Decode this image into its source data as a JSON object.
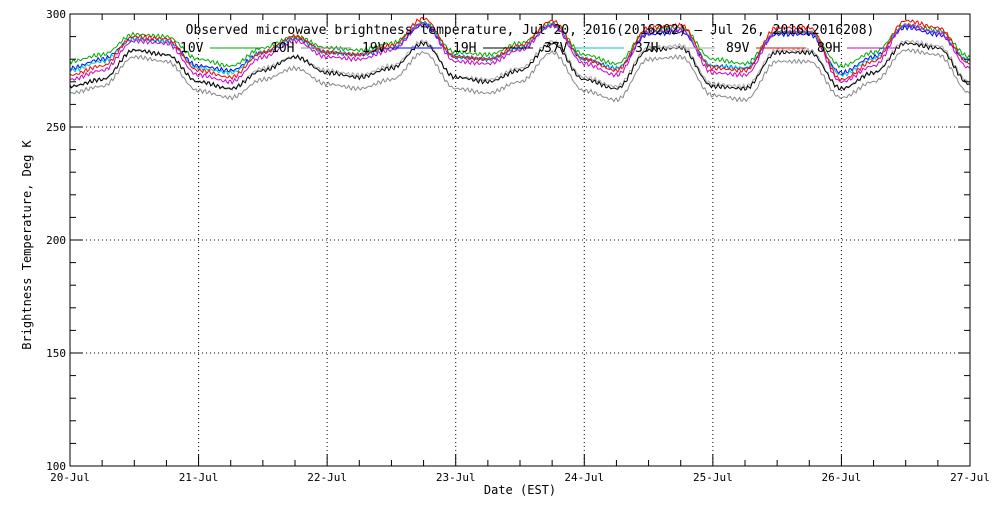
{
  "chart_data": {
    "type": "line",
    "title": "Observed microwave brightness temperature, Jul 20, 2016(2016202) – Jul 26, 2016(2016208)",
    "xlabel": "Date (EST)",
    "ylabel": "Brightness Temperature, Deg K",
    "xlim": [
      "2016-07-20",
      "2016-07-27"
    ],
    "ylim": [
      100,
      300
    ],
    "x_ticks": [
      "20-Jul",
      "21-Jul",
      "22-Jul",
      "23-Jul",
      "24-Jul",
      "25-Jul",
      "26-Jul",
      "27-Jul"
    ],
    "y_ticks": [
      100,
      150,
      200,
      250,
      300
    ],
    "grid": true,
    "legend": "top, single row",
    "x": [
      "2016-07-20 00:00",
      "2016-07-20 06:00",
      "2016-07-20 12:00",
      "2016-07-20 18:00",
      "2016-07-21 00:00",
      "2016-07-21 06:00",
      "2016-07-21 12:00",
      "2016-07-21 18:00",
      "2016-07-22 00:00",
      "2016-07-22 06:00",
      "2016-07-22 12:00",
      "2016-07-22 18:00",
      "2016-07-23 00:00",
      "2016-07-23 06:00",
      "2016-07-23 12:00",
      "2016-07-23 18:00",
      "2016-07-24 00:00",
      "2016-07-24 06:00",
      "2016-07-24 12:00",
      "2016-07-24 18:00",
      "2016-07-25 00:00",
      "2016-07-25 06:00",
      "2016-07-25 12:00",
      "2016-07-25 18:00",
      "2016-07-26 00:00",
      "2016-07-26 06:00",
      "2016-07-26 12:00",
      "2016-07-26 18:00",
      "2016-07-27 00:00"
    ],
    "series": [
      {
        "name": "10V",
        "color": "#00aa00",
        "values": [
          279,
          282,
          291,
          290,
          280,
          277,
          285,
          290,
          285,
          284,
          287,
          296,
          283,
          282,
          287,
          296,
          282,
          278,
          293,
          294,
          280,
          278,
          292,
          292,
          277,
          283,
          295,
          293,
          281
        ]
      },
      {
        "name": "10H",
        "color": "#888888",
        "values": [
          265,
          268,
          281,
          279,
          266,
          263,
          271,
          276,
          269,
          267,
          271,
          283,
          267,
          265,
          270,
          283,
          266,
          262,
          280,
          281,
          264,
          262,
          279,
          279,
          263,
          270,
          284,
          282,
          265
        ]
      },
      {
        "name": "19V",
        "color": "#0000ff",
        "values": [
          276,
          280,
          289,
          288,
          277,
          275,
          283,
          289,
          283,
          282,
          285,
          295,
          281,
          280,
          285,
          295,
          280,
          276,
          291,
          292,
          277,
          276,
          291,
          291,
          274,
          281,
          294,
          291,
          279
        ]
      },
      {
        "name": "19H",
        "color": "#000000",
        "values": [
          268,
          271,
          284,
          282,
          270,
          267,
          275,
          281,
          274,
          272,
          276,
          287,
          272,
          270,
          275,
          287,
          271,
          267,
          284,
          285,
          268,
          267,
          283,
          283,
          267,
          274,
          287,
          285,
          269
        ]
      },
      {
        "name": "37V",
        "color": "#00c8c8",
        "values": [
          275,
          279,
          289,
          288,
          276,
          274,
          283,
          289,
          283,
          282,
          285,
          296,
          281,
          280,
          285,
          295,
          280,
          276,
          292,
          293,
          277,
          276,
          292,
          292,
          273,
          280,
          295,
          292,
          279
        ]
      },
      {
        "name": "37H",
        "color": "#aaaaaa",
        "values": [
          268,
          271,
          284,
          282,
          270,
          267,
          276,
          281,
          275,
          273,
          277,
          288,
          272,
          271,
          276,
          288,
          272,
          268,
          285,
          286,
          269,
          268,
          284,
          284,
          267,
          274,
          288,
          286,
          270
        ]
      },
      {
        "name": "89V",
        "color": "#ff0000",
        "values": [
          273,
          277,
          290,
          289,
          275,
          272,
          283,
          290,
          283,
          282,
          286,
          298,
          281,
          280,
          286,
          297,
          280,
          275,
          294,
          295,
          276,
          275,
          294,
          294,
          271,
          279,
          297,
          294,
          278
        ]
      },
      {
        "name": "89H",
        "color": "#cc00cc",
        "values": [
          271,
          275,
          288,
          287,
          273,
          270,
          281,
          288,
          281,
          280,
          284,
          296,
          279,
          278,
          284,
          295,
          278,
          273,
          292,
          293,
          274,
          273,
          292,
          292,
          270,
          277,
          295,
          292,
          276
        ]
      }
    ]
  }
}
